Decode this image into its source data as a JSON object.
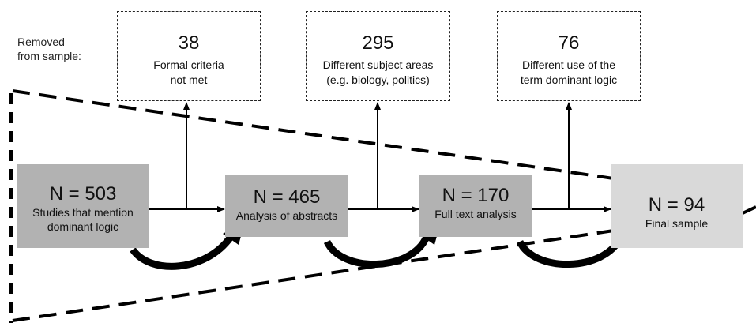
{
  "removed_label": "Removed\nfrom sample:",
  "removed": [
    {
      "count": "38",
      "description": "Formal criteria\nnot met"
    },
    {
      "count": "295",
      "description": "Different  subject areas\n(e.g. biology, politics)"
    },
    {
      "count": "76",
      "description": "Different  use of the\nterm dominant logic"
    }
  ],
  "stages": [
    {
      "n": "N = 503",
      "label": "Studies that mention\ndominant logic"
    },
    {
      "n": "N = 465",
      "label": "Analysis of abstracts"
    },
    {
      "n": "N = 170",
      "label": "Full text analysis"
    },
    {
      "n": "N = 94",
      "label": "Final sample"
    }
  ],
  "colors": {
    "stage_fill": "#b2b2b2",
    "final_fill": "#d9d9d9",
    "line": "#000000"
  }
}
